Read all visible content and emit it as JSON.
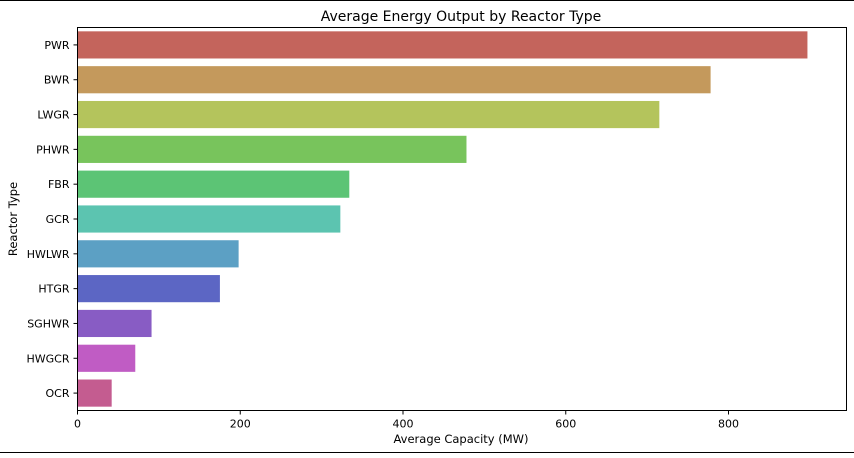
{
  "chart_data": {
    "type": "bar",
    "orientation": "horizontal",
    "title": "Average Energy Output by Reactor Type",
    "xlabel": "Average Capacity (MW)",
    "ylabel": "Reactor Type",
    "categories": [
      "PWR",
      "BWR",
      "LWGR",
      "PHWR",
      "FBR",
      "GCR",
      "HWLWR",
      "HTGR",
      "SGHWR",
      "HWGCR",
      "OCR"
    ],
    "values": [
      897,
      778,
      715,
      478,
      334,
      323,
      198,
      175,
      91,
      71,
      42
    ],
    "xlim": [
      0,
      945
    ],
    "xticks": [
      0,
      200,
      400,
      600,
      800
    ],
    "grid": false,
    "colors": [
      "#c4645c",
      "#c4995c",
      "#b4c45c",
      "#78c45c",
      "#5cc475",
      "#5cc4b0",
      "#5ca0c4",
      "#5c66c4",
      "#885cc4",
      "#c05cc4",
      "#c45c90"
    ]
  }
}
